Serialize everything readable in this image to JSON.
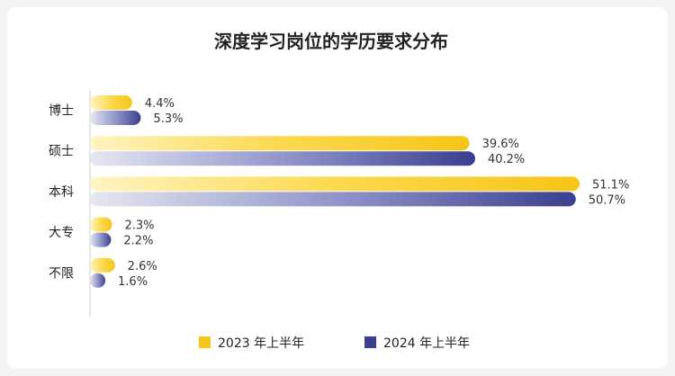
{
  "chart_data": {
    "type": "bar",
    "orientation": "horizontal",
    "title": "深度学习岗位的学历要求分布",
    "categories": [
      "博士",
      "硕士",
      "本科",
      "大专",
      "不限"
    ],
    "series": [
      {
        "name": "2023 年上半年",
        "values": [
          4.4,
          39.6,
          51.1,
          2.3,
          2.6
        ],
        "labels": [
          "4.4%",
          "39.6%",
          "51.1%",
          "2.3%",
          "2.6%"
        ],
        "color": "#f5c518"
      },
      {
        "name": "2024 年上半年",
        "values": [
          5.3,
          40.2,
          50.7,
          2.2,
          1.6
        ],
        "labels": [
          "5.3%",
          "40.2%",
          "50.7%",
          "2.2%",
          "1.6%"
        ],
        "color": "#3a3f8f"
      }
    ],
    "unit": "%",
    "xlim": [
      0,
      51.1
    ],
    "grid": false,
    "legend_position": "bottom"
  }
}
